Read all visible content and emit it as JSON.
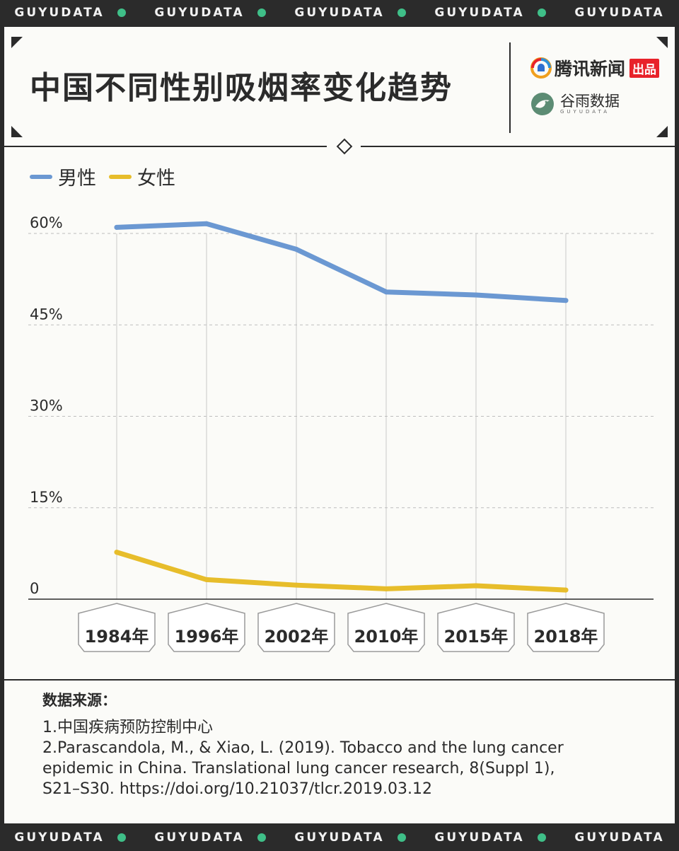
{
  "band_text": "GUYUDATA",
  "title": "中国不同性别吸烟率变化趋势",
  "brands": {
    "tencent_name": "腾讯新闻",
    "tencent_tag": "出品",
    "guyu_name": "谷雨数据",
    "guyu_sub": "GUYUDATA"
  },
  "colors": {
    "male": "#6b98d2",
    "female": "#e7bd2b",
    "band_dot": "#3fbf88",
    "tag_red": "#e8222a"
  },
  "chart_data": {
    "type": "line",
    "title": "中国不同性别吸烟率变化趋势",
    "categories": [
      "1984年",
      "1996年",
      "2002年",
      "2010年",
      "2015年",
      "2018年"
    ],
    "y_ticks": [
      0,
      15,
      30,
      45,
      60
    ],
    "y_tick_labels": [
      "0",
      "15%",
      "30%",
      "45%",
      "60%"
    ],
    "ylim": [
      0,
      60
    ],
    "grid": "dashed horizontal + vertical category lines",
    "legend_placement": "top-left",
    "series": [
      {
        "name": "男性",
        "color": "#6b98d2",
        "values": [
          61.0,
          61.6,
          57.4,
          50.4,
          49.9,
          49.0
        ]
      },
      {
        "name": "女性",
        "color": "#e7bd2b",
        "values": [
          7.7,
          3.2,
          2.3,
          1.7,
          2.2,
          1.5
        ]
      }
    ]
  },
  "sources": {
    "title": "数据来源：",
    "items": [
      "1.中国疾病预防控制中心",
      "2.Parascandola, M., & Xiao, L. (2019). Tobacco and the lung cancer",
      "epidemic in China. Translational lung cancer research, 8(Suppl 1),",
      "S21–S30. https://doi.org/10.21037/tlcr.2019.03.12"
    ]
  }
}
